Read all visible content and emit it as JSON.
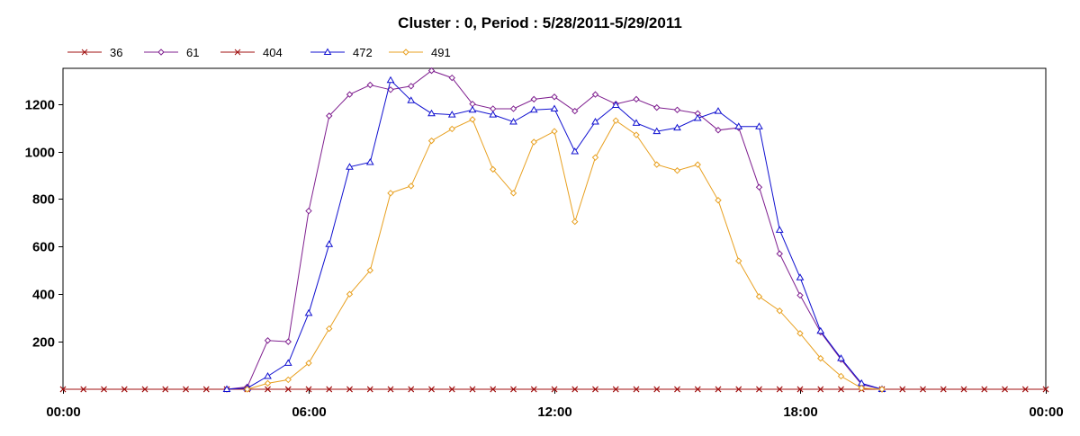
{
  "chart_data": {
    "type": "line",
    "title": "Cluster : 0, Period : 5/28/2011-5/29/2011",
    "xlabel": "",
    "ylabel": "",
    "x_ticks": [
      "00:00",
      "06:00",
      "12:00",
      "18:00",
      "00:00"
    ],
    "y_ticks": [
      "200",
      "400",
      "600",
      "800",
      "1000",
      "1200"
    ],
    "xlim": [
      0,
      24
    ],
    "ylim": [
      0,
      1350
    ],
    "grid": "vertical dotted lines every 30 minutes",
    "legend_position": "top-left",
    "series": [
      {
        "name": "36",
        "color": "#a01010",
        "marker": "x",
        "x": [
          0,
          0.5,
          1,
          1.5,
          2,
          2.5,
          3,
          3.5,
          4,
          4.5,
          5,
          5.5,
          6,
          6.5,
          7,
          7.5,
          8,
          8.5,
          9,
          9.5,
          10,
          10.5,
          11,
          11.5,
          12,
          12.5,
          13,
          13.5,
          14,
          14.5,
          15,
          15.5,
          16,
          16.5,
          17,
          17.5,
          18,
          18.5,
          19,
          19.5,
          20,
          20.5,
          21,
          21.5,
          22,
          22.5,
          23,
          23.5,
          24
        ],
        "values": [
          0,
          0,
          0,
          0,
          0,
          0,
          0,
          0,
          0,
          0,
          0,
          0,
          0,
          0,
          0,
          0,
          0,
          0,
          0,
          0,
          0,
          0,
          0,
          0,
          0,
          0,
          0,
          0,
          0,
          0,
          0,
          0,
          0,
          0,
          0,
          0,
          0,
          0,
          0,
          0,
          0,
          0,
          0,
          0,
          0,
          0,
          0,
          0,
          0
        ]
      },
      {
        "name": "61",
        "color": "#7f1f8f",
        "marker": "diamond",
        "x": [
          4,
          4.5,
          5,
          5.5,
          6,
          6.5,
          7,
          7.5,
          8,
          8.5,
          9,
          9.5,
          10,
          10.5,
          11,
          11.5,
          12,
          12.5,
          13,
          13.5,
          14,
          14.5,
          15,
          15.5,
          16,
          16.5,
          17,
          17.5,
          18,
          18.5,
          19,
          19.5,
          20
        ],
        "values": [
          0,
          10,
          205,
          200,
          750,
          1150,
          1240,
          1280,
          1260,
          1275,
          1340,
          1310,
          1200,
          1180,
          1180,
          1220,
          1230,
          1170,
          1240,
          1200,
          1220,
          1185,
          1175,
          1160,
          1090,
          1100,
          850,
          570,
          395,
          240,
          125,
          20,
          0
        ]
      },
      {
        "name": "404",
        "color": "#a01010",
        "marker": "x",
        "x": [
          0,
          0.5,
          1,
          1.5,
          2,
          2.5,
          3,
          3.5,
          4,
          4.5,
          5,
          5.5,
          6,
          6.5,
          7,
          7.5,
          8,
          8.5,
          9,
          9.5,
          10,
          10.5,
          11,
          11.5,
          12,
          12.5,
          13,
          13.5,
          14,
          14.5,
          15,
          15.5,
          16,
          16.5,
          17,
          17.5,
          18,
          18.5,
          19,
          19.5,
          20,
          20.5,
          21,
          21.5,
          22,
          22.5,
          23,
          23.5,
          24
        ],
        "values": [
          0,
          0,
          0,
          0,
          0,
          0,
          0,
          0,
          0,
          0,
          0,
          0,
          0,
          0,
          0,
          0,
          0,
          0,
          0,
          0,
          0,
          0,
          0,
          0,
          0,
          0,
          0,
          0,
          0,
          0,
          0,
          0,
          0,
          0,
          0,
          0,
          0,
          0,
          0,
          0,
          0,
          0,
          0,
          0,
          0,
          0,
          0,
          0,
          0
        ]
      },
      {
        "name": "472",
        "color": "#1010d0",
        "marker": "triangle",
        "x": [
          4,
          4.5,
          5,
          5.5,
          6,
          6.5,
          7,
          7.5,
          8,
          8.5,
          9,
          9.5,
          10,
          10.5,
          11,
          11.5,
          12,
          12.5,
          13,
          13.5,
          14,
          14.5,
          15,
          15.5,
          16,
          16.5,
          17,
          17.5,
          18,
          18.5,
          19,
          19.5,
          20
        ],
        "values": [
          0,
          5,
          55,
          110,
          320,
          610,
          935,
          955,
          1300,
          1215,
          1160,
          1155,
          1175,
          1155,
          1125,
          1175,
          1180,
          1000,
          1125,
          1195,
          1120,
          1085,
          1100,
          1140,
          1170,
          1105,
          1105,
          670,
          470,
          245,
          130,
          25,
          0
        ]
      },
      {
        "name": "491",
        "color": "#e8a020",
        "marker": "diamond",
        "x": [
          4.5,
          5,
          5.5,
          6,
          6.5,
          7,
          7.5,
          8,
          8.5,
          9,
          9.5,
          10,
          10.5,
          11,
          11.5,
          12,
          12.5,
          13,
          13.5,
          14,
          14.5,
          15,
          15.5,
          16,
          16.5,
          17,
          17.5,
          18,
          18.5,
          19,
          19.5,
          20
        ],
        "values": [
          0,
          25,
          40,
          110,
          255,
          400,
          500,
          825,
          855,
          1045,
          1095,
          1135,
          925,
          825,
          1040,
          1085,
          705,
          975,
          1130,
          1070,
          945,
          920,
          945,
          795,
          540,
          390,
          330,
          235,
          130,
          55,
          5,
          0
        ]
      }
    ]
  }
}
